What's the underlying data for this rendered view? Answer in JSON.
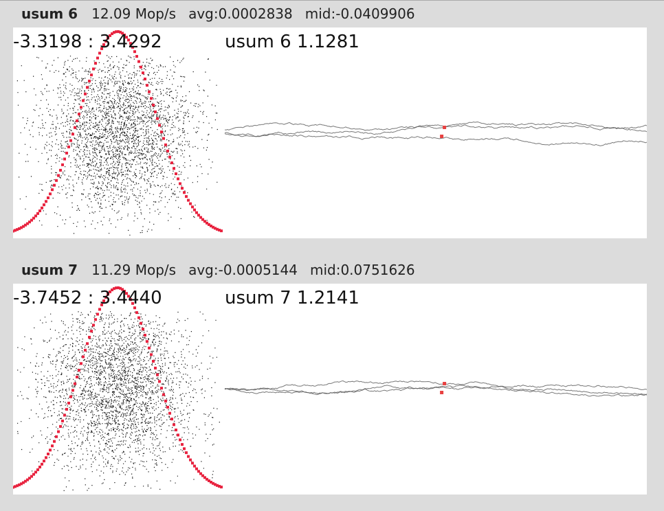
{
  "panels": [
    {
      "name": "usum 6",
      "rate": "12.09 Mop/s",
      "avg": "avg:0.0002838",
      "mid": "mid:-0.0409906",
      "range_label": "-3.3198 : 3.4292",
      "title": "usum 6 1.1281",
      "chart_data": {
        "type": "scatter",
        "x_range": [
          -3.3198,
          3.4292
        ],
        "histogram_curve": "gaussian",
        "walk_levels": [
          -0.4,
          0.15,
          0.05
        ],
        "marker_x": 0.51
      }
    },
    {
      "name": "usum 7",
      "rate": "11.29 Mop/s",
      "avg": "avg:-0.0005144",
      "mid": "mid:0.0751626",
      "range_label": "-3.7452 : 3.4440",
      "title": "usum 7 1.2141",
      "chart_data": {
        "type": "scatter",
        "x_range": [
          -3.7452,
          3.444
        ],
        "histogram_curve": "gaussian",
        "walk_levels": [
          -0.05,
          0.1,
          0.0
        ],
        "marker_x": 0.51
      }
    }
  ],
  "colors": {
    "scatter": "#111111",
    "curve": "#e8233f",
    "walk": "#555555",
    "marker": "#e84040"
  }
}
